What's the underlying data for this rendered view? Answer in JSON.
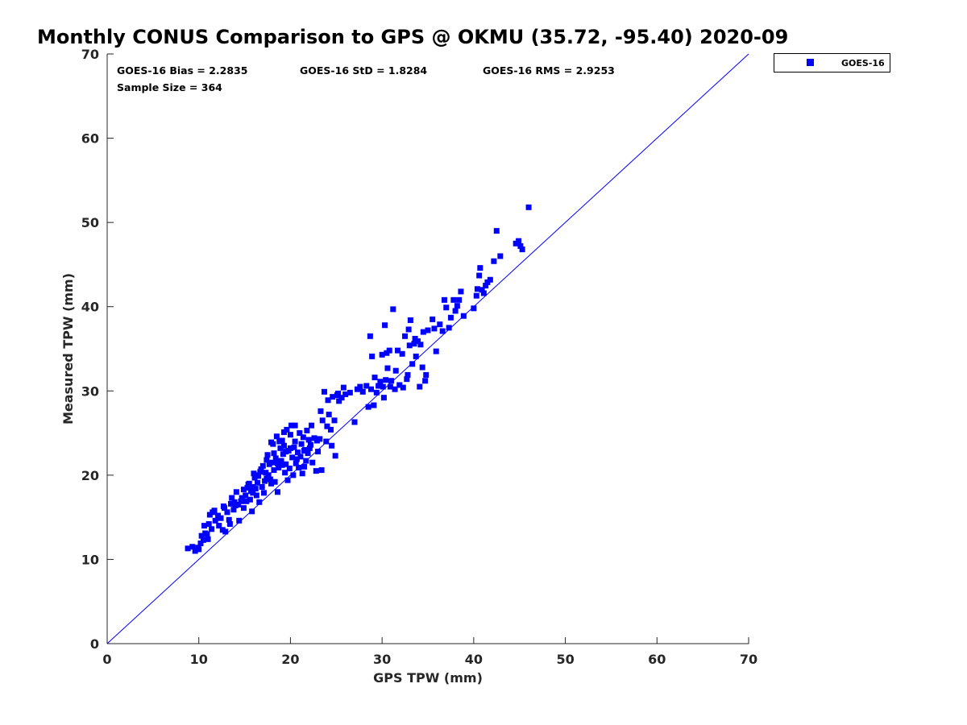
{
  "chart_data": {
    "type": "scatter",
    "title": "Monthly CONUS Comparison to GPS @ OKMU (35.72, -95.40) 2020-09",
    "xlabel": "GPS TPW (mm)",
    "ylabel": "Measured TPW (mm)",
    "xlim": [
      0,
      70
    ],
    "ylim": [
      0,
      70
    ],
    "xticks": [
      "0",
      "10",
      "20",
      "30",
      "40",
      "50",
      "60",
      "70"
    ],
    "yticks": [
      "0",
      "10",
      "20",
      "30",
      "40",
      "50",
      "60",
      "70"
    ],
    "grid": false,
    "legend_position": "top-right, outside plot",
    "annotations": {
      "bias": "GOES-16 Bias = 2.2835",
      "std": "GOES-16 StD = 1.8284",
      "rms": "GOES-16 RMS = 2.9253",
      "sample": "Sample Size = 364"
    },
    "reference_line": {
      "x": [
        0,
        70
      ],
      "y": [
        0,
        70
      ]
    },
    "series": [
      {
        "name": "GOES-16",
        "color": "#0000ff",
        "marker": "square",
        "points": [
          [
            8.8,
            11.3
          ],
          [
            9.3,
            11.5
          ],
          [
            9.6,
            11.0
          ],
          [
            9.9,
            11.4
          ],
          [
            10.2,
            11.9
          ],
          [
            10.5,
            12.3
          ],
          [
            10.3,
            12.8
          ],
          [
            10.7,
            13.1
          ],
          [
            11.0,
            12.4
          ],
          [
            10.6,
            14.0
          ],
          [
            11.1,
            14.2
          ],
          [
            11.4,
            13.6
          ],
          [
            11.8,
            14.6
          ],
          [
            11.2,
            15.3
          ],
          [
            11.7,
            15.8
          ],
          [
            12.1,
            15.2
          ],
          [
            12.4,
            14.9
          ],
          [
            12.6,
            13.5
          ],
          [
            12.8,
            16.1
          ],
          [
            13.1,
            15.6
          ],
          [
            12.9,
            13.3
          ],
          [
            13.3,
            14.7
          ],
          [
            13.5,
            16.6
          ],
          [
            13.8,
            15.9
          ],
          [
            14.1,
            18.0
          ],
          [
            14.4,
            14.6
          ],
          [
            14.3,
            16.5
          ],
          [
            14.7,
            17.3
          ],
          [
            14.9,
            16.1
          ],
          [
            15.2,
            16.9
          ],
          [
            15.3,
            18.5
          ],
          [
            15.6,
            17.1
          ],
          [
            15.8,
            15.7
          ],
          [
            15.5,
            19.0
          ],
          [
            15.9,
            17.9
          ],
          [
            16.2,
            18.4
          ],
          [
            16.0,
            20.2
          ],
          [
            16.4,
            19.1
          ],
          [
            16.6,
            16.8
          ],
          [
            16.9,
            18.6
          ],
          [
            16.7,
            20.4
          ],
          [
            17.0,
            21.1
          ],
          [
            17.2,
            19.3
          ],
          [
            17.1,
            17.9
          ],
          [
            17.4,
            21.8
          ],
          [
            17.6,
            20.0
          ],
          [
            17.8,
            19.5
          ],
          [
            17.5,
            22.4
          ],
          [
            18.0,
            21.5
          ],
          [
            18.2,
            20.6
          ],
          [
            18.1,
            23.7
          ],
          [
            18.3,
            19.2
          ],
          [
            18.5,
            24.6
          ],
          [
            18.4,
            22.0
          ],
          [
            18.7,
            20.9
          ],
          [
            18.9,
            23.2
          ],
          [
            18.6,
            18.0
          ],
          [
            19.0,
            21.7
          ],
          [
            19.2,
            22.5
          ],
          [
            19.1,
            24.1
          ],
          [
            19.4,
            20.3
          ],
          [
            19.6,
            25.4
          ],
          [
            19.3,
            23.5
          ],
          [
            19.5,
            21.3
          ],
          [
            19.8,
            22.9
          ],
          [
            19.7,
            19.4
          ],
          [
            20.0,
            24.8
          ],
          [
            19.9,
            20.8
          ],
          [
            20.2,
            22.1
          ],
          [
            20.1,
            25.9
          ],
          [
            20.4,
            23.3
          ],
          [
            20.3,
            20.0
          ],
          [
            20.6,
            21.4
          ],
          [
            20.5,
            24.0
          ],
          [
            20.8,
            22.7
          ],
          [
            21.0,
            25.0
          ],
          [
            20.9,
            20.9
          ],
          [
            21.2,
            23.7
          ],
          [
            21.1,
            22.2
          ],
          [
            21.4,
            24.5
          ],
          [
            21.3,
            20.2
          ],
          [
            21.6,
            23.0
          ],
          [
            21.8,
            25.3
          ],
          [
            21.7,
            21.7
          ],
          [
            22.0,
            24.2
          ],
          [
            21.9,
            22.6
          ],
          [
            22.2,
            23.6
          ],
          [
            22.4,
            21.5
          ],
          [
            22.3,
            25.9
          ],
          [
            22.6,
            24.4
          ],
          [
            22.8,
            20.5
          ],
          [
            23.0,
            22.8
          ],
          [
            23.2,
            24.3
          ],
          [
            23.3,
            27.6
          ],
          [
            23.5,
            26.5
          ],
          [
            23.4,
            20.6
          ],
          [
            23.7,
            29.9
          ],
          [
            23.9,
            24.0
          ],
          [
            24.0,
            25.8
          ],
          [
            24.2,
            27.2
          ],
          [
            24.1,
            28.9
          ],
          [
            24.4,
            25.4
          ],
          [
            24.6,
            29.3
          ],
          [
            24.5,
            23.5
          ],
          [
            24.8,
            26.5
          ],
          [
            24.9,
            22.3
          ],
          [
            25.1,
            29.5
          ],
          [
            25.3,
            28.8
          ],
          [
            25.2,
            29.7
          ],
          [
            25.6,
            29.2
          ],
          [
            25.8,
            30.4
          ],
          [
            26.0,
            29.6
          ],
          [
            26.5,
            29.8
          ],
          [
            27.0,
            26.3
          ],
          [
            27.3,
            30.2
          ],
          [
            27.6,
            30.5
          ],
          [
            27.9,
            29.9
          ],
          [
            28.3,
            30.6
          ],
          [
            28.5,
            28.1
          ],
          [
            28.7,
            36.5
          ],
          [
            28.9,
            34.1
          ],
          [
            28.8,
            30.2
          ],
          [
            29.1,
            28.3
          ],
          [
            29.2,
            31.6
          ],
          [
            29.4,
            29.8
          ],
          [
            29.6,
            30.6
          ],
          [
            29.8,
            31.1
          ],
          [
            30.0,
            34.3
          ],
          [
            30.1,
            30.5
          ],
          [
            30.3,
            37.8
          ],
          [
            30.2,
            29.2
          ],
          [
            30.5,
            34.5
          ],
          [
            30.4,
            31.3
          ],
          [
            30.6,
            32.7
          ],
          [
            30.8,
            34.8
          ],
          [
            30.9,
            30.5
          ],
          [
            31.0,
            31.2
          ],
          [
            31.2,
            39.7
          ],
          [
            31.4,
            30.2
          ],
          [
            31.5,
            32.4
          ],
          [
            31.7,
            34.8
          ],
          [
            31.9,
            30.7
          ],
          [
            32.2,
            34.4
          ],
          [
            32.3,
            30.4
          ],
          [
            32.5,
            36.5
          ],
          [
            32.7,
            31.4
          ],
          [
            32.9,
            37.3
          ],
          [
            32.8,
            31.9
          ],
          [
            33.1,
            38.4
          ],
          [
            33.0,
            35.4
          ],
          [
            33.3,
            33.2
          ],
          [
            33.5,
            35.6
          ],
          [
            33.7,
            34.1
          ],
          [
            33.6,
            36.2
          ],
          [
            33.9,
            35.9
          ],
          [
            34.1,
            30.5
          ],
          [
            34.2,
            35.5
          ],
          [
            34.4,
            32.8
          ],
          [
            34.5,
            37.0
          ],
          [
            34.7,
            31.2
          ],
          [
            34.8,
            31.9
          ],
          [
            35.0,
            37.2
          ],
          [
            35.5,
            38.5
          ],
          [
            35.9,
            34.7
          ],
          [
            35.7,
            37.4
          ],
          [
            36.3,
            37.9
          ],
          [
            36.6,
            37.1
          ],
          [
            36.8,
            40.8
          ],
          [
            37.0,
            39.9
          ],
          [
            37.3,
            37.5
          ],
          [
            37.5,
            38.7
          ],
          [
            37.8,
            40.8
          ],
          [
            38.0,
            39.5
          ],
          [
            38.2,
            40.1
          ],
          [
            38.4,
            40.8
          ],
          [
            38.6,
            41.8
          ],
          [
            38.9,
            38.9
          ],
          [
            40.0,
            39.8
          ],
          [
            40.3,
            41.3
          ],
          [
            40.4,
            42.1
          ],
          [
            40.6,
            43.7
          ],
          [
            40.7,
            44.6
          ],
          [
            40.9,
            42.0
          ],
          [
            41.1,
            41.6
          ],
          [
            41.3,
            42.5
          ],
          [
            41.5,
            42.9
          ],
          [
            41.8,
            43.2
          ],
          [
            42.2,
            45.4
          ],
          [
            42.5,
            49.0
          ],
          [
            42.9,
            46.0
          ],
          [
            44.6,
            47.5
          ],
          [
            44.9,
            47.8
          ],
          [
            45.1,
            47.2
          ],
          [
            45.3,
            46.8
          ],
          [
            46.0,
            51.8
          ],
          [
            10.0,
            11.2
          ],
          [
            10.9,
            13.0
          ],
          [
            11.5,
            15.6
          ],
          [
            12.2,
            14.0
          ],
          [
            12.7,
            16.3
          ],
          [
            13.4,
            14.2
          ],
          [
            13.9,
            16.8
          ],
          [
            14.6,
            16.9
          ],
          [
            15.1,
            17.6
          ],
          [
            15.4,
            18.9
          ],
          [
            15.7,
            18.1
          ],
          [
            16.1,
            19.7
          ],
          [
            16.3,
            17.6
          ],
          [
            16.5,
            19.9
          ],
          [
            16.8,
            20.7
          ],
          [
            17.3,
            20.3
          ],
          [
            17.7,
            21.3
          ],
          [
            17.9,
            19.0
          ],
          [
            18.2,
            22.6
          ],
          [
            18.8,
            24.0
          ],
          [
            19.1,
            21.2
          ],
          [
            19.5,
            22.8
          ],
          [
            20.0,
            23.2
          ],
          [
            20.7,
            21.9
          ],
          [
            21.5,
            21.0
          ],
          [
            22.1,
            23.2
          ],
          [
            17.9,
            23.9
          ],
          [
            16.2,
            20.0
          ],
          [
            14.9,
            18.3
          ],
          [
            13.6,
            17.3
          ],
          [
            19.3,
            25.1
          ],
          [
            20.5,
            25.9
          ],
          [
            21.5,
            22.9
          ],
          [
            22.9,
            24.1
          ],
          [
            18.6,
            21.4
          ],
          [
            17.4,
            19.6
          ],
          [
            15.9,
            18.6
          ],
          [
            14.0,
            16.4
          ]
        ]
      }
    ]
  }
}
